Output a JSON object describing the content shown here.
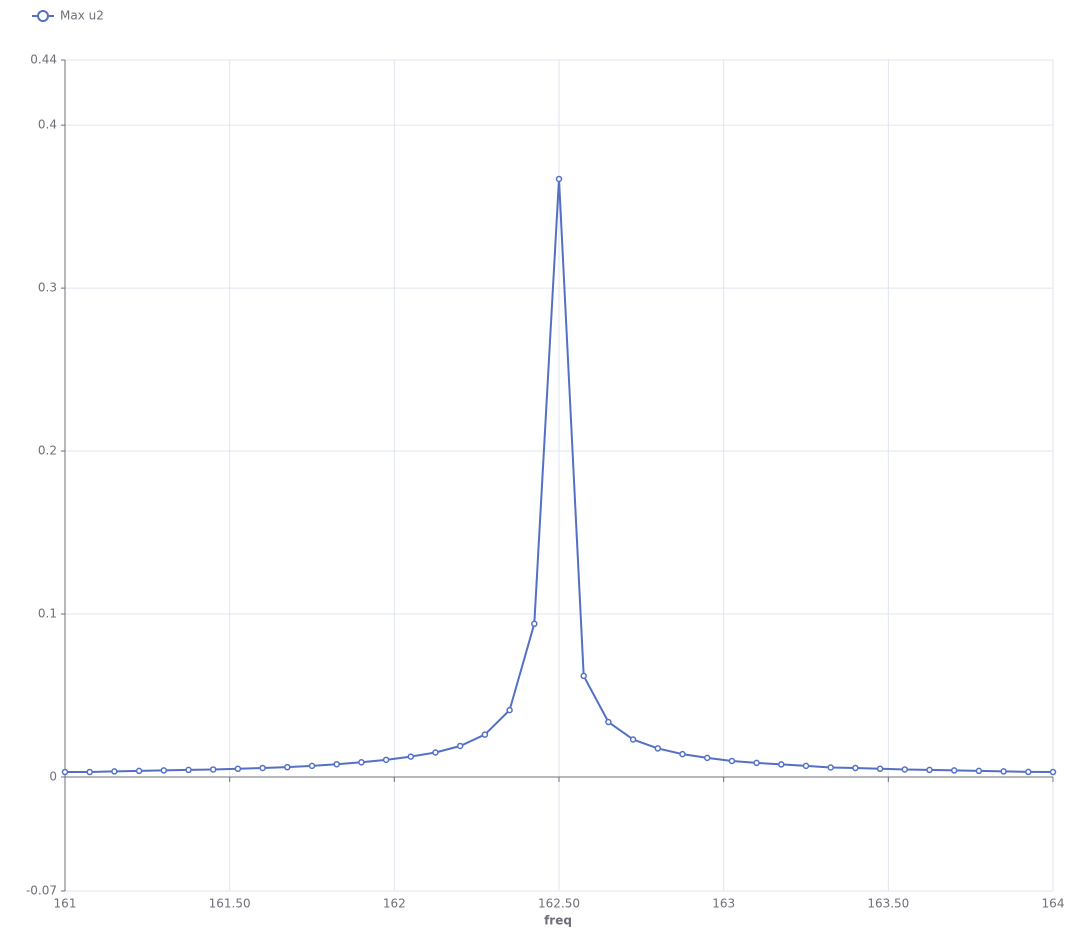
{
  "chart_data": {
    "type": "line",
    "x_label": "freq",
    "x": [
      161,
      161.075,
      161.15,
      161.225,
      161.3,
      161.375,
      161.45,
      161.525,
      161.6,
      161.675,
      161.75,
      161.825,
      161.9,
      161.975,
      162.05,
      162.125,
      162.2,
      162.275,
      162.35,
      162.425,
      162.5,
      162.575,
      162.65,
      162.725,
      162.8,
      162.875,
      162.95,
      163.025,
      163.1,
      163.175,
      163.25,
      163.325,
      163.4,
      163.475,
      163.55,
      163.625,
      163.7,
      163.775,
      163.85,
      163.925,
      164
    ],
    "series": [
      {
        "name": "Max u2",
        "color": "#5470c6",
        "values": [
          0.003,
          0.003,
          0.0034,
          0.0037,
          0.004,
          0.0043,
          0.0046,
          0.005,
          0.0055,
          0.006,
          0.0068,
          0.0078,
          0.009,
          0.0105,
          0.0125,
          0.015,
          0.019,
          0.026,
          0.041,
          0.094,
          0.367,
          0.062,
          0.0337,
          0.023,
          0.0175,
          0.014,
          0.0117,
          0.0098,
          0.0086,
          0.0077,
          0.0068,
          0.0058,
          0.0055,
          0.005,
          0.0046,
          0.0043,
          0.004,
          0.0037,
          0.0034,
          0.0031,
          0.003
        ]
      }
    ],
    "xlim": [
      161,
      164
    ],
    "xticks": [
      161,
      {
        "value": 161.5,
        "label": "161.50"
      },
      162,
      {
        "value": 162.5,
        "label": "162.50"
      },
      163,
      {
        "value": 163.5,
        "label": "163.50"
      },
      164
    ],
    "ylim": [
      -0.07,
      0.44
    ],
    "yticks": [
      -0.07,
      0,
      0.1,
      0.2,
      0.3,
      0.4,
      0.44
    ],
    "grid": true,
    "legend": "top-left"
  }
}
